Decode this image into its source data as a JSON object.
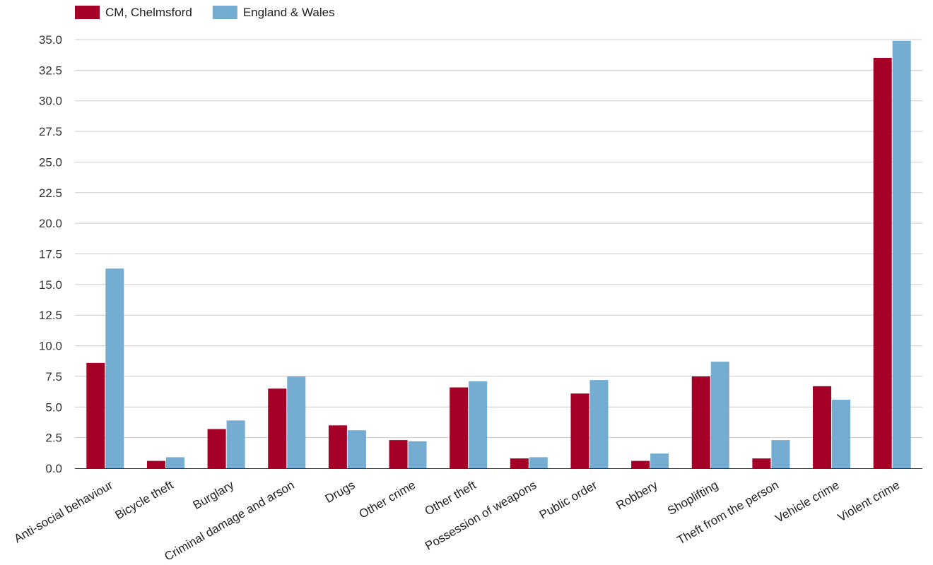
{
  "chart_data": {
    "type": "bar",
    "categories": [
      "Anti-social behaviour",
      "Bicycle theft",
      "Burglary",
      "Criminal damage and arson",
      "Drugs",
      "Other crime",
      "Other theft",
      "Possession of weapons",
      "Public order",
      "Robbery",
      "Shoplifting",
      "Theft from the person",
      "Vehicle crime",
      "Violent crime"
    ],
    "series": [
      {
        "name": "CM, Chelmsford",
        "color": "#a50026",
        "values": [
          8.6,
          0.6,
          3.2,
          6.5,
          3.5,
          2.3,
          6.6,
          0.8,
          6.1,
          0.6,
          7.5,
          0.8,
          6.7,
          33.5
        ]
      },
      {
        "name": "England & Wales",
        "color": "#74add1",
        "values": [
          16.3,
          0.9,
          3.9,
          7.5,
          3.1,
          2.2,
          7.1,
          0.9,
          7.2,
          1.2,
          8.7,
          2.3,
          5.6,
          34.9
        ]
      }
    ],
    "yticks": [
      "0.0",
      "2.5",
      "5.0",
      "7.5",
      "10.0",
      "12.5",
      "15.0",
      "17.5",
      "20.0",
      "22.5",
      "25.0",
      "27.5",
      "30.0",
      "32.5",
      "35.0"
    ],
    "ylim": [
      0,
      35
    ],
    "grid": true,
    "legend_position": "top-left",
    "title": "",
    "xlabel": "",
    "ylabel": ""
  }
}
